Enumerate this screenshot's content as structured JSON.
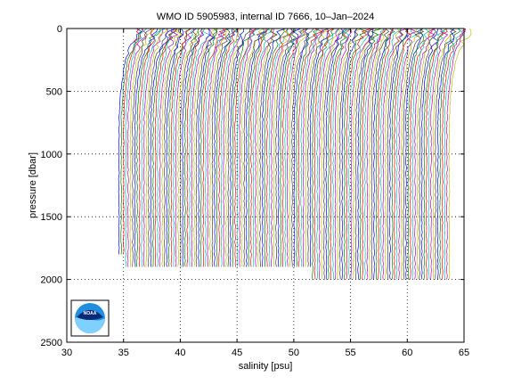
{
  "chart_data": {
    "type": "line",
    "title": "WMO ID 5905983, internal ID 7666, 10–Jan–2024",
    "xlabel": "salinity [psu]",
    "ylabel": "pressure [dbar]",
    "xlim": [
      30,
      65
    ],
    "ylim": [
      0,
      2500
    ],
    "y_reversed": true,
    "x_ticks": [
      30,
      35,
      40,
      45,
      50,
      55,
      60,
      65
    ],
    "y_ticks": [
      0,
      500,
      1000,
      1500,
      2000,
      2500
    ],
    "grid": "dotted",
    "profile_count": 146,
    "profile_offset_psu": 0.2,
    "first_profile_deep_salinity": 34.6,
    "last_profile_deep_salinity": 63.7,
    "max_pressure_dbar": [
      1800,
      1900,
      2000
    ],
    "colors": [
      "#0000ff",
      "#008000",
      "#ff0000",
      "#00bfbf",
      "#bf00bf",
      "#bfbf00",
      "#404040"
    ]
  },
  "logo": {
    "name": "noaa-logo",
    "text": "NOAA"
  }
}
